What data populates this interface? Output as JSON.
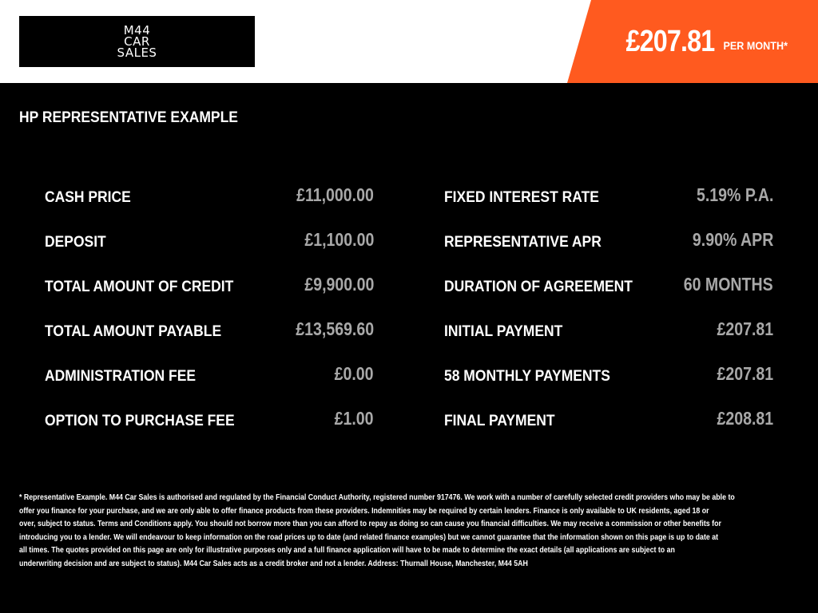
{
  "header": {
    "logo_text": "M44\nCAR\nSALES",
    "price": "£207.81",
    "per_month": "PER MONTH*",
    "accent_color": "#ff5a1f"
  },
  "title": "HP REPRESENTATIVE EXAMPLE",
  "left_rows": [
    {
      "label": "CASH PRICE",
      "value": "£11,000.00"
    },
    {
      "label": "DEPOSIT",
      "value": "£1,100.00"
    },
    {
      "label": "TOTAL AMOUNT OF CREDIT",
      "value": "£9,900.00"
    },
    {
      "label": "TOTAL AMOUNT PAYABLE",
      "value": "£13,569.60"
    },
    {
      "label": "ADMINISTRATION FEE",
      "value": "£0.00"
    },
    {
      "label": "OPTION TO PURCHASE FEE",
      "value": "£1.00"
    }
  ],
  "right_rows": [
    {
      "label": "FIXED INTEREST RATE",
      "value": "5.19% P.A."
    },
    {
      "label": "REPRESENTATIVE APR",
      "value": "9.90% APR"
    },
    {
      "label": "DURATION OF AGREEMENT",
      "value": "60 MONTHS"
    },
    {
      "label": "INITIAL PAYMENT",
      "value": "£207.81"
    },
    {
      "label": "58 MONTHLY PAYMENTS",
      "value": "£207.81"
    },
    {
      "label": "FINAL PAYMENT",
      "value": "£208.81"
    }
  ],
  "footer_lines": [
    "* Representative Example. M44 Car Sales is authorised and regulated by the Financial Conduct Authority, registered number 917476. We work with a number of carefully selected credit providers who may be able to",
    "offer you finance for your purchase, and we are only able to offer finance products from these providers. Indemnities may be required by certain lenders. Finance is only available to UK residents, aged 18 or",
    "over, subject to status. Terms and Conditions apply. You should not borrow more than you can afford to repay as doing so can cause you financial difficulties. We may receive a commission or other benefits for",
    "introducing you to a lender. We will endeavour to keep information on the road prices up to date (and related finance examples) but we cannot guarantee that the information shown on this page is up to date at",
    "all times. The quotes provided on this page are only for illustrative purposes only and a full finance application will have to be made to determine the exact details (all applications are subject to an",
    "underwriting decision and are subject to status). M44 Car Sales acts as a credit broker and not a lender. Address: Thurnall House, Manchester, M44 5AH"
  ]
}
